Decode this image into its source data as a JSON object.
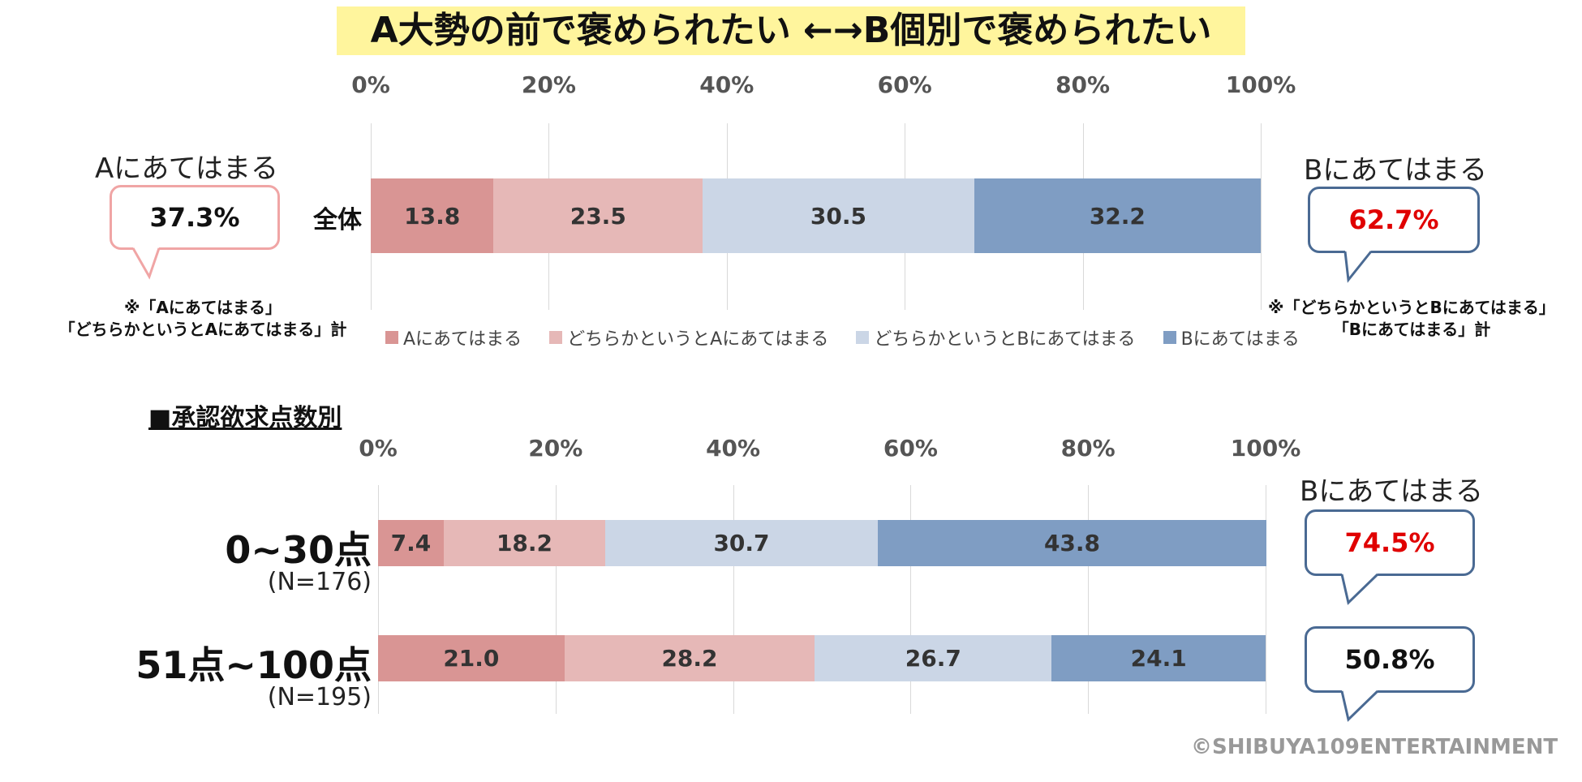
{
  "title": "A大勢の前で褒められたい ←→B個別で褒められたい",
  "colors": {
    "a": "#d99594",
    "lean_a": "#e6b8b7",
    "lean_b": "#cbd6e6",
    "b": "#7f9dc3"
  },
  "chart_data": [
    {
      "type": "bar",
      "orientation": "horizontal",
      "stacked": true,
      "categories": [
        "全体"
      ],
      "series": [
        {
          "name": "Aにあてはまる",
          "values": [
            13.8
          ]
        },
        {
          "name": "どちらかというとAにあてはまる",
          "values": [
            23.5
          ]
        },
        {
          "name": "どちらかというとBにあてはまる",
          "values": [
            30.5
          ]
        },
        {
          "name": "Bにあてはまる",
          "values": [
            32.2
          ]
        }
      ],
      "xlim": [
        0,
        100
      ],
      "ticks": [
        "0%",
        "20%",
        "40%",
        "60%",
        "80%",
        "100%"
      ],
      "legend": "bottom",
      "grid": true
    },
    {
      "type": "bar",
      "orientation": "horizontal",
      "stacked": true,
      "categories": [
        "0~30点",
        "51点~100点"
      ],
      "category_sublabels": [
        "(N=176)",
        "(N=195)"
      ],
      "series": [
        {
          "name": "Aにあてはまる",
          "values": [
            7.4,
            21.0
          ]
        },
        {
          "name": "どちらかというとAにあてはまる",
          "values": [
            18.2,
            28.2
          ]
        },
        {
          "name": "どちらかというとBにあてはまる",
          "values": [
            30.7,
            26.7
          ]
        },
        {
          "name": "Bにあてはまる",
          "values": [
            43.8,
            24.1
          ]
        }
      ],
      "xlim": [
        0,
        100
      ],
      "ticks": [
        "0%",
        "20%",
        "40%",
        "60%",
        "80%",
        "100%"
      ],
      "grid": true
    }
  ],
  "top_callouts": {
    "left": {
      "title": "Aにあてはまる",
      "value": "37.3%",
      "note": [
        "※「Aにあてはまる」",
        "「どちらかというとAにあてはまる」計"
      ]
    },
    "right": {
      "title": "Bにあてはまる",
      "value": "62.7%",
      "note": [
        "※「どちらかというとBにあてはまる」",
        "「Bにあてはまる」計"
      ]
    }
  },
  "section_title": "■承認欲求点数別",
  "bottom_callouts": {
    "title": "Bにあてはまる",
    "values": [
      "74.5%",
      "50.8%"
    ]
  },
  "credit": "©SHIBUYA109ENTERTAINMENT"
}
